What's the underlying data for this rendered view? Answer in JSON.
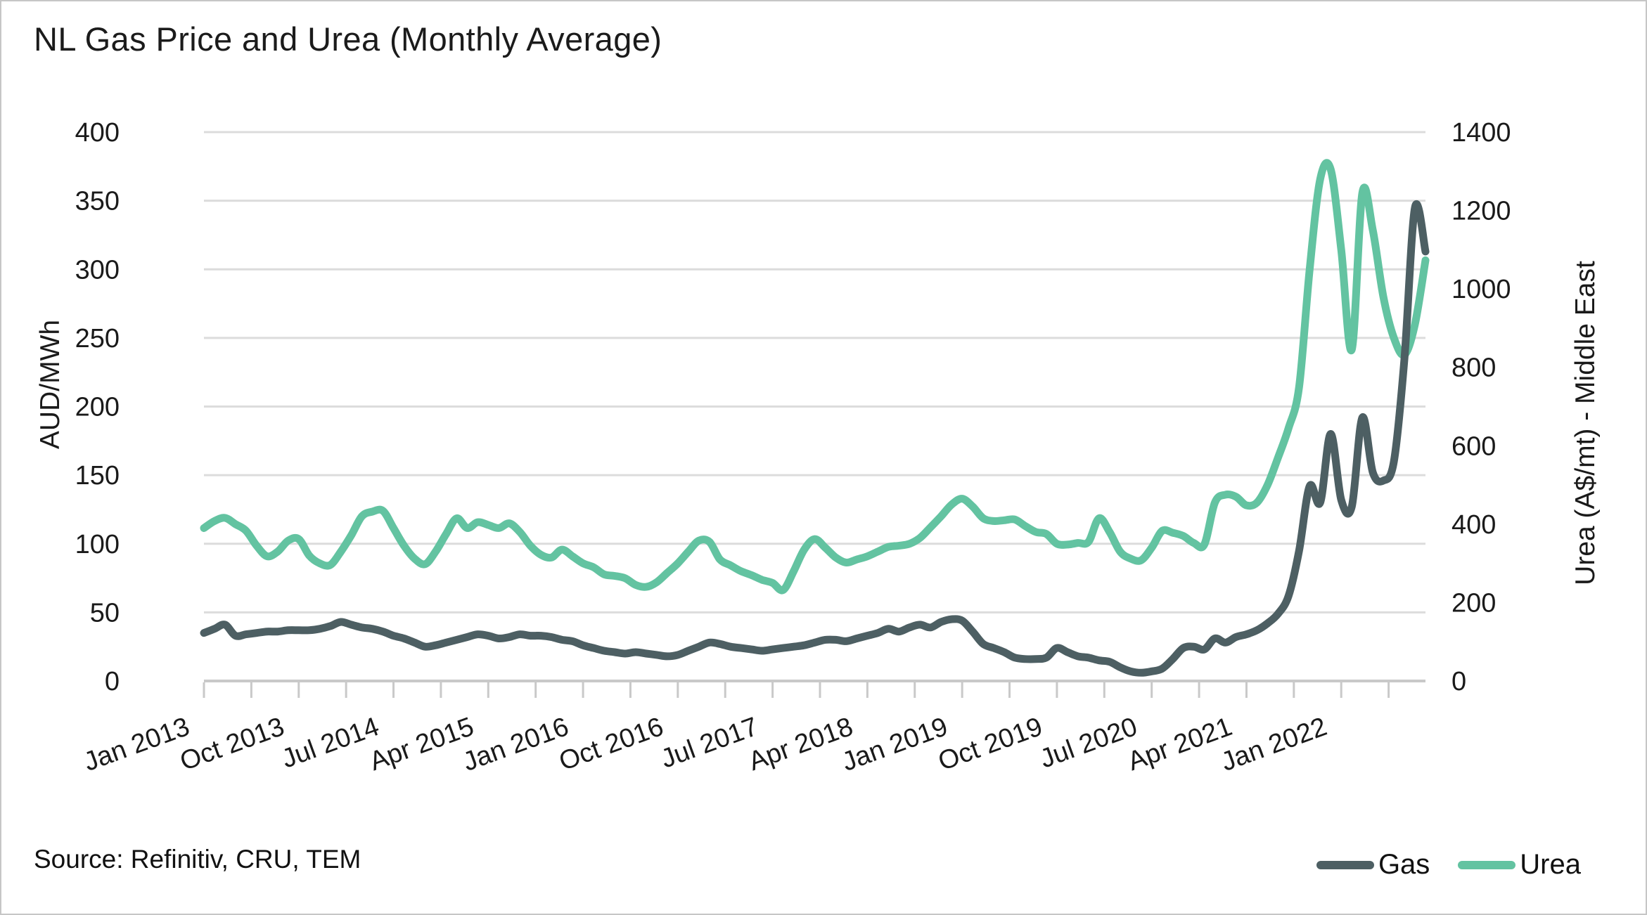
{
  "title": "NL Gas Price and Urea (Monthly Average)",
  "source_note": "Source: Refinitiv, CRU, TEM",
  "left_axis": {
    "title": "AUD/MWh",
    "ticks": [
      0,
      50,
      100,
      150,
      200,
      250,
      300,
      350,
      400
    ],
    "min": 0,
    "max": 400
  },
  "right_axis": {
    "title": "Urea (A$/mt) - Middle East",
    "ticks": [
      0,
      200,
      400,
      600,
      800,
      1000,
      1200,
      1400
    ],
    "min": 0,
    "max": 1400
  },
  "x_axis": {
    "tick_labels": [
      "Jan 2013",
      "Oct 2013",
      "Jul 2014",
      "Apr 2015",
      "Jan 2016",
      "Oct 2016",
      "Jul 2017",
      "Apr 2018",
      "Jan 2019",
      "Oct 2019",
      "Jul 2020",
      "Apr 2021",
      "Jan 2022"
    ],
    "months_between_labels": 9,
    "minor_ticks_between_labels": 1,
    "label_rotation_deg": -20
  },
  "colors": {
    "gas": "#4d5f63",
    "urea": "#63c3a1",
    "gridline": "#dcdcdc",
    "axis": "#c9c9c9",
    "text": "#1a1a1a"
  },
  "chart_data": {
    "type": "line",
    "title": "NL Gas Price and Urea (Monthly Average)",
    "x_frequency": "monthly",
    "x_start": "Jan 2013",
    "x_end": "Sep 2022",
    "x_tick_labels": [
      "Jan 2013",
      "Oct 2013",
      "Jul 2014",
      "Apr 2015",
      "Jan 2016",
      "Oct 2016",
      "Jul 2017",
      "Apr 2018",
      "Jan 2019",
      "Oct 2019",
      "Jul 2020",
      "Apr 2021",
      "Jan 2022"
    ],
    "ylabel_left": "AUD/MWh",
    "ylabel_right": "Urea (A$/mt) - Middle East",
    "ylim_left": [
      0,
      400
    ],
    "ylim_right": [
      0,
      1400
    ],
    "grid": "horizontal",
    "legend_position": "bottom-right",
    "series": [
      {
        "name": "Gas",
        "axis": "left",
        "unit": "AUD/MWh",
        "color": "#4d5f63",
        "values": [
          35,
          38,
          41,
          33,
          34,
          35,
          36,
          36,
          37,
          37,
          37,
          38,
          40,
          43,
          41,
          39,
          38,
          36,
          33,
          31,
          28,
          25,
          26,
          28,
          30,
          32,
          34,
          33,
          31,
          32,
          34,
          33,
          33,
          32,
          30,
          29,
          26,
          24,
          22,
          21,
          20,
          21,
          20,
          19,
          18,
          19,
          22,
          25,
          28,
          27,
          25,
          24,
          23,
          22,
          23,
          24,
          25,
          26,
          28,
          30,
          30,
          29,
          31,
          33,
          35,
          38,
          36,
          39,
          41,
          39,
          43,
          45,
          44,
          36,
          27,
          24,
          21,
          17,
          16,
          16,
          17,
          24,
          21,
          18,
          17,
          15,
          14,
          10,
          7,
          6,
          7,
          9,
          16,
          24,
          25,
          23,
          31,
          28,
          32,
          34,
          37,
          42,
          49,
          62,
          95,
          142,
          130,
          180,
          132,
          127,
          192,
          152,
          146,
          160,
          235,
          345,
          313
        ]
      },
      {
        "name": "Urea",
        "axis": "right",
        "unit": "A$/mt",
        "color": "#63c3a1",
        "values": [
          390,
          408,
          416,
          400,
          383,
          345,
          318,
          330,
          358,
          362,
          320,
          300,
          296,
          330,
          372,
          420,
          432,
          434,
          390,
          345,
          312,
          298,
          330,
          375,
          415,
          390,
          405,
          398,
          390,
          402,
          380,
          345,
          322,
          315,
          335,
          318,
          300,
          290,
          272,
          268,
          262,
          245,
          240,
          252,
          276,
          300,
          330,
          358,
          355,
          310,
          295,
          280,
          270,
          258,
          250,
          232,
          280,
          335,
          362,
          340,
          315,
          302,
          310,
          318,
          330,
          342,
          345,
          350,
          365,
          392,
          420,
          450,
          465,
          445,
          415,
          408,
          410,
          412,
          395,
          380,
          375,
          350,
          348,
          352,
          355,
          415,
          380,
          330,
          312,
          308,
          340,
          383,
          378,
          370,
          352,
          348,
          455,
          475,
          470,
          448,
          455,
          500,
          570,
          645,
          750,
          1050,
          1280,
          1305,
          1100,
          845,
          1245,
          1150,
          980,
          875,
          832,
          910,
          1073
        ]
      }
    ]
  }
}
